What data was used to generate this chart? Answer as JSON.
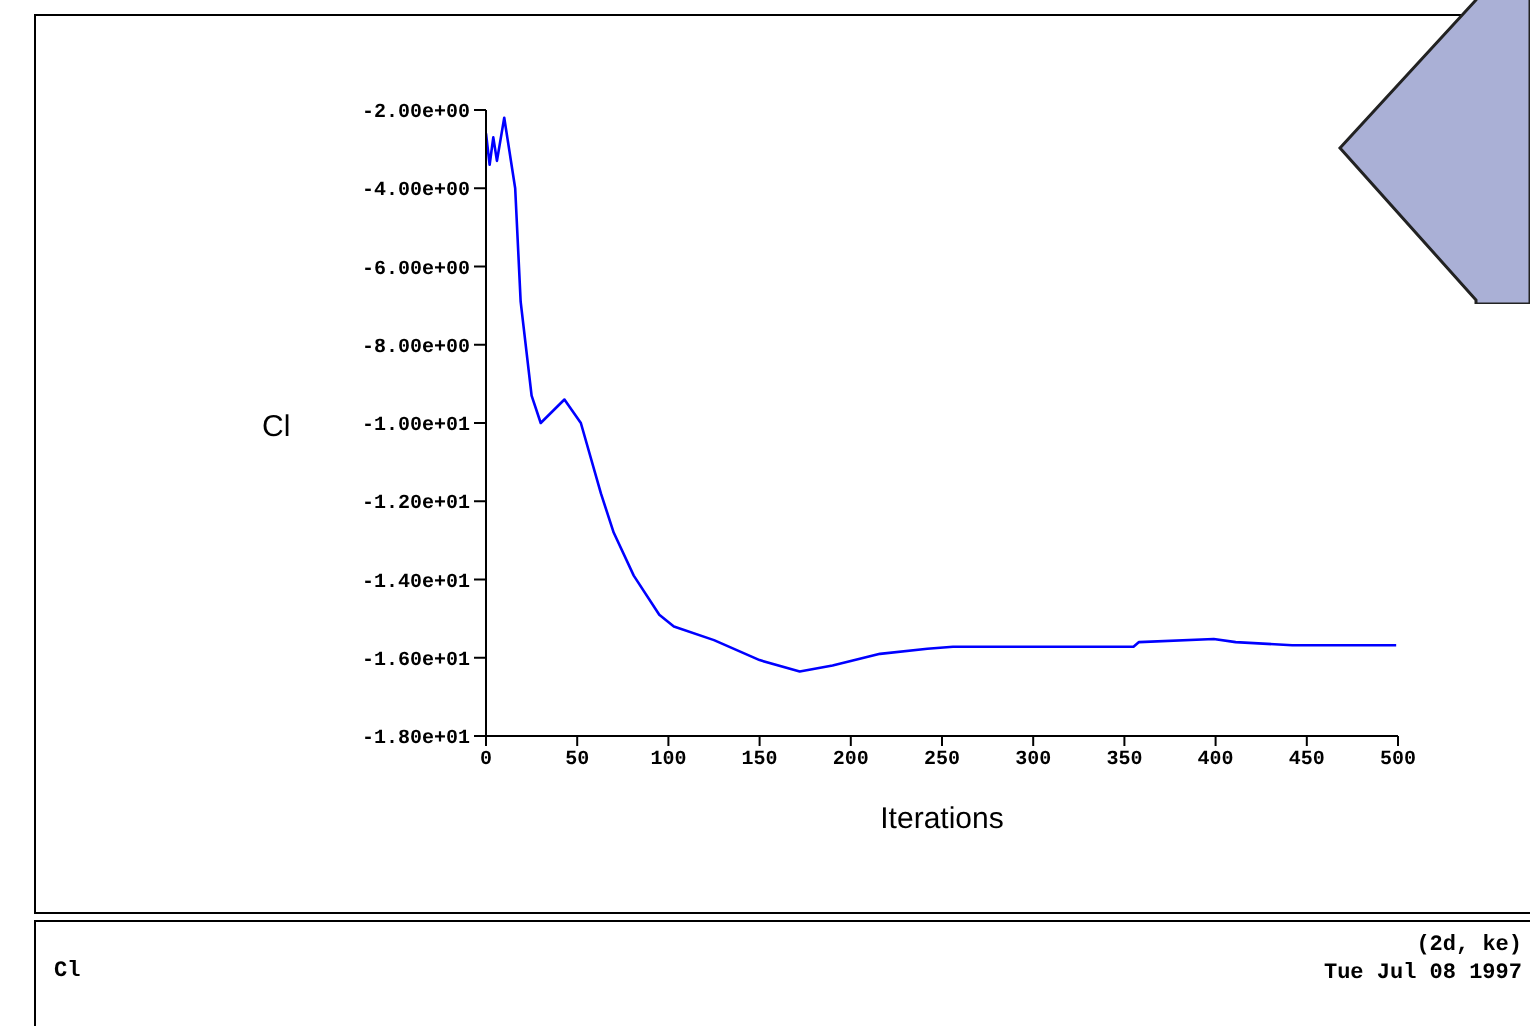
{
  "chart_data": {
    "type": "line",
    "xlabel": "Iterations",
    "ylabel": "Cl",
    "x": [
      0,
      2,
      4,
      6,
      10,
      16,
      19,
      25,
      30,
      43,
      52,
      63,
      70,
      81,
      95,
      103,
      125,
      150,
      172,
      190,
      216,
      242,
      256,
      355,
      358,
      399,
      411,
      442,
      499
    ],
    "series": [
      {
        "color": "#0000ff",
        "values": [
          -2.6,
          -3.4,
          -2.7,
          -3.3,
          -2.2,
          -4.0,
          -6.9,
          -9.3,
          -10.0,
          -9.4,
          -10.0,
          -11.8,
          -12.8,
          -13.9,
          -14.9,
          -15.2,
          -15.55,
          -16.06,
          -16.35,
          -16.2,
          -15.9,
          -15.77,
          -15.72,
          -15.72,
          -15.6,
          -15.52,
          -15.6,
          -15.68,
          -15.68
        ]
      }
    ],
    "xlim": [
      0,
      500
    ],
    "xticks": [
      0,
      50,
      100,
      150,
      200,
      250,
      300,
      350,
      400,
      450,
      500
    ],
    "ylim": [
      -18,
      -2
    ],
    "yticks": [
      {
        "value": -2,
        "label": "-2.00e+00"
      },
      {
        "value": -4,
        "label": "-4.00e+00"
      },
      {
        "value": -6,
        "label": "-6.00e+00"
      },
      {
        "value": -8,
        "label": "-8.00e+00"
      },
      {
        "value": -10,
        "label": "-1.00e+01"
      },
      {
        "value": -12,
        "label": "-1.20e+01"
      },
      {
        "value": -14,
        "label": "-1.40e+01"
      },
      {
        "value": -16,
        "label": "-1.60e+01"
      },
      {
        "value": -18,
        "label": "-1.80e+01"
      }
    ],
    "grid": false,
    "marker": "none",
    "line_style": "solid",
    "annotations": [
      "Cl",
      "(2d, ke)",
      "Tue Jul 08 1997"
    ]
  }
}
